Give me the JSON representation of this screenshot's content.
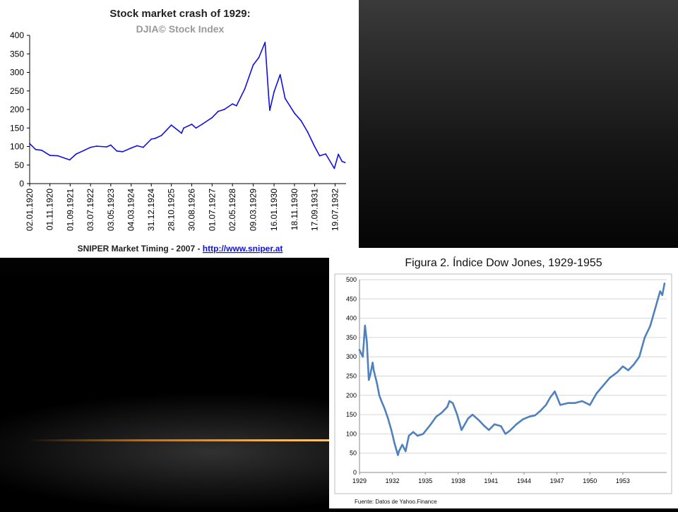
{
  "chart_data": [
    {
      "type": "line",
      "title": "Stock market crash of 1929:",
      "subtitle": "DJIA© Stock Index",
      "footer_text": "SNIPER Market Timing - 2007 - ",
      "footer_link": "http://www.sniper.at",
      "ylim": [
        0,
        400
      ],
      "y_ticks": [
        "0",
        "50",
        "100",
        "150",
        "200",
        "250",
        "300",
        "350",
        "400"
      ],
      "x_tick_labels": [
        "02.01.1920",
        "01.11.1920",
        "01.09.1921",
        "03.07.1922",
        "03.05.1923",
        "04.03.1924",
        "31.12.1924",
        "28.10.1925",
        "30.08.1926",
        "01.07.1927",
        "02.05.1928",
        "09.03.1929",
        "16.01.1930",
        "18.11.1930",
        "17.09.1931",
        "19.07.1932"
      ],
      "grid": false,
      "legend": "none",
      "series": [
        {
          "color": "#1010e0",
          "x": [
            "1920-01-02",
            "1920-04-01",
            "1920-07-01",
            "1920-11-01",
            "1921-03-01",
            "1921-08-24",
            "1921-12-01",
            "1922-04-01",
            "1922-07-03",
            "1922-10-01",
            "1923-03-01",
            "1923-05-03",
            "1923-08-01",
            "1923-10-27",
            "1924-03-04",
            "1924-06-01",
            "1924-09-01",
            "1924-12-31",
            "1925-03-01",
            "1925-06-01",
            "1925-10-28",
            "1926-03-30",
            "1926-05-01",
            "1926-08-30",
            "1926-11-01",
            "1927-02-01",
            "1927-07-01",
            "1927-10-01",
            "1927-12-31",
            "1928-05-02",
            "1928-07-01",
            "1928-11-01",
            "1929-03-09",
            "1929-06-01",
            "1929-09-03",
            "1929-10-29",
            "1929-11-13",
            "1930-01-16",
            "1930-04-17",
            "1930-07-01",
            "1930-11-18",
            "1931-02-24",
            "1931-06-01",
            "1931-09-17",
            "1931-12-01",
            "1932-03-01",
            "1932-07-08",
            "1932-09-07",
            "1932-11-01",
            "1932-12-15"
          ],
          "values": [
            108,
            92,
            90,
            76,
            75,
            64,
            80,
            90,
            98,
            101,
            99,
            104,
            88,
            86,
            96,
            102,
            98,
            120,
            122,
            130,
            158,
            136,
            150,
            160,
            150,
            160,
            178,
            195,
            200,
            215,
            210,
            255,
            320,
            340,
            381,
            230,
            198,
            248,
            294,
            230,
            190,
            170,
            140,
            100,
            75,
            80,
            41,
            79,
            60,
            57
          ]
        }
      ]
    },
    {
      "type": "line",
      "title": "Figura 2. Índice Dow Jones, 1929-1955",
      "footer_text": "Fuente: Datos de Yahoo.Finance",
      "xlim": [
        1929,
        1957
      ],
      "ylim": [
        0,
        500
      ],
      "y_ticks": [
        "0",
        "50",
        "100",
        "150",
        "200",
        "250",
        "300",
        "350",
        "400",
        "450",
        "500"
      ],
      "x_tick_labels": [
        "1929",
        "1932",
        "1935",
        "1938",
        "1941",
        "1944",
        "1947",
        "1950",
        "1953"
      ],
      "grid": true,
      "legend": "none",
      "series": [
        {
          "color": "#4f81bd",
          "x": [
            1929.0,
            1929.3,
            1929.5,
            1929.67,
            1929.85,
            1930.0,
            1930.2,
            1930.3,
            1930.6,
            1930.8,
            1931.0,
            1931.3,
            1931.6,
            1931.9,
            1932.2,
            1932.5,
            1932.6,
            1932.9,
            1933.2,
            1933.5,
            1933.9,
            1934.3,
            1934.8,
            1935.5,
            1936.0,
            1936.5,
            1937.0,
            1937.2,
            1937.5,
            1937.9,
            1938.3,
            1938.9,
            1939.3,
            1939.9,
            1940.4,
            1940.8,
            1941.3,
            1941.9,
            1942.3,
            1942.7,
            1943.3,
            1943.9,
            1944.5,
            1945.0,
            1945.5,
            1946.0,
            1946.4,
            1946.8,
            1947.3,
            1948.0,
            1948.6,
            1949.3,
            1950.0,
            1950.6,
            1951.2,
            1951.8,
            1952.5,
            1953.0,
            1953.5,
            1954.0,
            1954.5,
            1955.0,
            1955.5,
            1956.0,
            1956.4,
            1956.6,
            1956.8
          ],
          "values": [
            318,
            300,
            381,
            340,
            240,
            255,
            285,
            265,
            230,
            200,
            185,
            165,
            140,
            110,
            75,
            45,
            55,
            72,
            55,
            95,
            105,
            95,
            100,
            125,
            145,
            155,
            170,
            185,
            180,
            150,
            110,
            140,
            150,
            135,
            120,
            110,
            125,
            120,
            100,
            108,
            125,
            138,
            145,
            148,
            160,
            175,
            195,
            210,
            175,
            180,
            180,
            185,
            175,
            205,
            225,
            245,
            260,
            275,
            265,
            280,
            300,
            350,
            380,
            430,
            470,
            460,
            490
          ]
        }
      ]
    }
  ]
}
